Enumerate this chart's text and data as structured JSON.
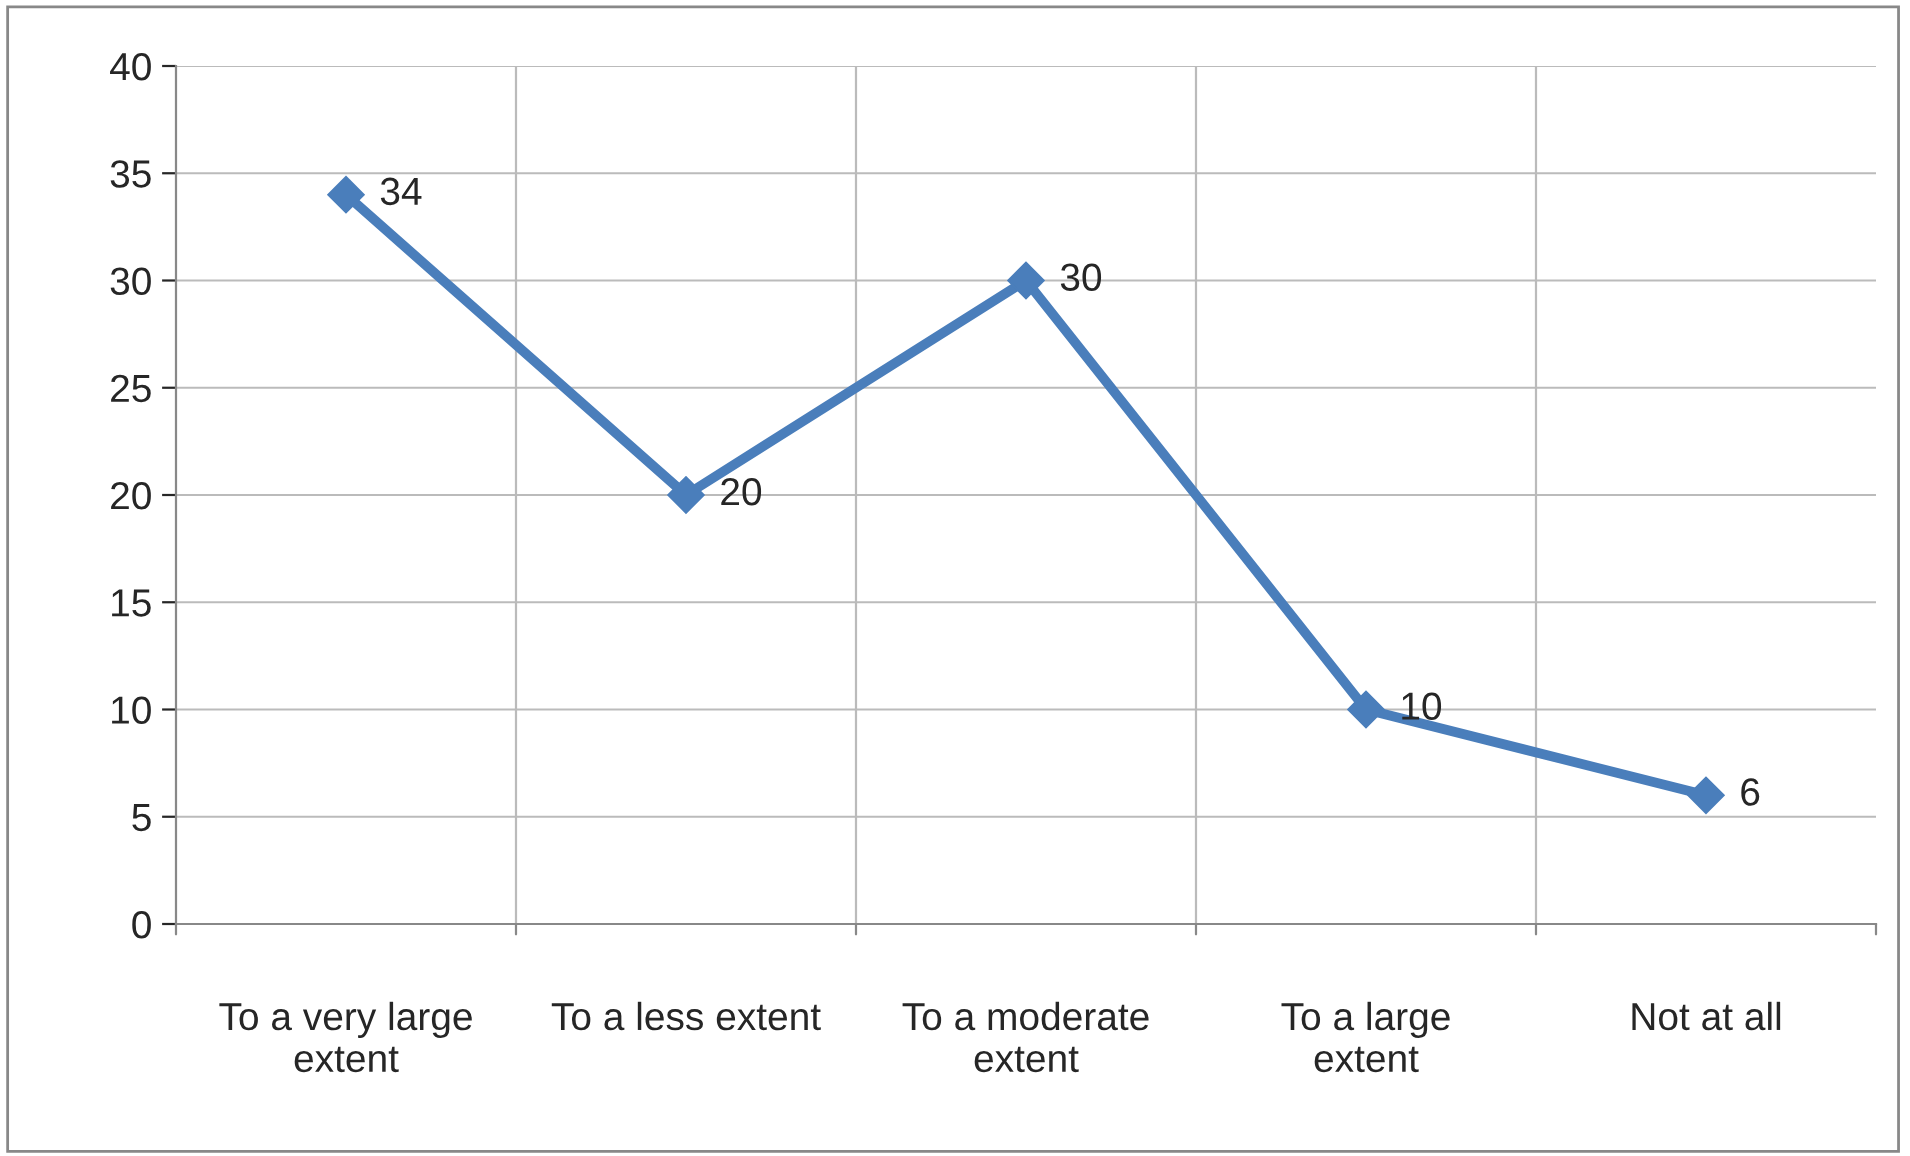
{
  "chart_data": {
    "type": "line",
    "categories": [
      "To a very large\nextent",
      "To a less extent",
      "To a moderate\nextent",
      "To a large\nextent",
      "Not at all"
    ],
    "series": [
      {
        "color": "#4a7ebb",
        "values": [
          34,
          20,
          30,
          10,
          6
        ]
      }
    ],
    "ylim": [
      0,
      40
    ],
    "yticks": [
      0,
      5,
      10,
      15,
      20,
      25,
      30,
      35,
      40
    ],
    "grid": true,
    "marker": "diamond",
    "line_style": "solid",
    "data_labels": true,
    "legend": false
  }
}
